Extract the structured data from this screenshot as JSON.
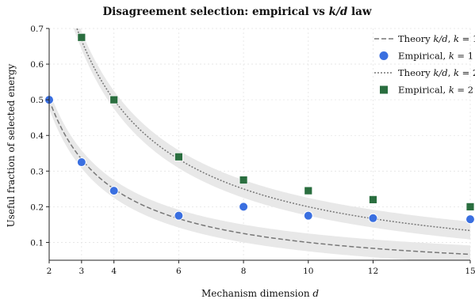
{
  "chart_data": {
    "type": "scatter",
    "title": "Disagreement selection: empirical vs k/d law",
    "xlabel": "Mechanism dimension d",
    "ylabel": "Useful fraction of selected energy",
    "xlim": [
      2,
      15
    ],
    "ylim": [
      0.05,
      0.7
    ],
    "x_ticks": [
      2,
      3,
      4,
      6,
      8,
      10,
      12,
      15
    ],
    "y_ticks": [
      0.1,
      0.2,
      0.3,
      0.4,
      0.5,
      0.6,
      0.7
    ],
    "grid": true,
    "legend_position": "top-right",
    "band_halfwidth": 0.025,
    "series": [
      {
        "name": "Theory k/d, k = 1",
        "kind": "theory",
        "k": 1,
        "style": "dashed",
        "color": "#777777"
      },
      {
        "name": "Empirical, k = 1",
        "kind": "empirical",
        "marker": "circle",
        "color": "#3a6fe0",
        "x": [
          2,
          3,
          4,
          6,
          8,
          10,
          12,
          15
        ],
        "y": [
          0.5,
          0.325,
          0.245,
          0.175,
          0.2,
          0.175,
          0.168,
          0.165
        ]
      },
      {
        "name": "Theory k/d, k = 2",
        "kind": "theory",
        "k": 2,
        "style": "dotted",
        "color": "#777777"
      },
      {
        "name": "Empirical, k = 2",
        "kind": "empirical",
        "marker": "square",
        "color": "#2a6e3f",
        "x": [
          3,
          4,
          6,
          8,
          10,
          12,
          15
        ],
        "y": [
          0.675,
          0.5,
          0.34,
          0.275,
          0.245,
          0.22,
          0.2
        ]
      }
    ],
    "legend": [
      {
        "prefix": "Theory ",
        "math": "k/d",
        "suffix": ", ",
        "kvar": "k",
        "keq": " = 1"
      },
      {
        "prefix": "Empirical, ",
        "math": "",
        "suffix": "",
        "kvar": "k",
        "keq": " = 1"
      },
      {
        "prefix": "Theory ",
        "math": "k/d",
        "suffix": ", ",
        "kvar": "k",
        "keq": " = 2"
      },
      {
        "prefix": "Empirical, ",
        "math": "",
        "suffix": "",
        "kvar": "k",
        "keq": " = 2"
      }
    ],
    "title_parts": {
      "before": "Disagreement selection: empirical vs ",
      "math": "k/d",
      "after": " law"
    },
    "xlabel_parts": {
      "before": "Mechanism dimension ",
      "math": "d"
    },
    "band_color": "#e8e8e8"
  }
}
